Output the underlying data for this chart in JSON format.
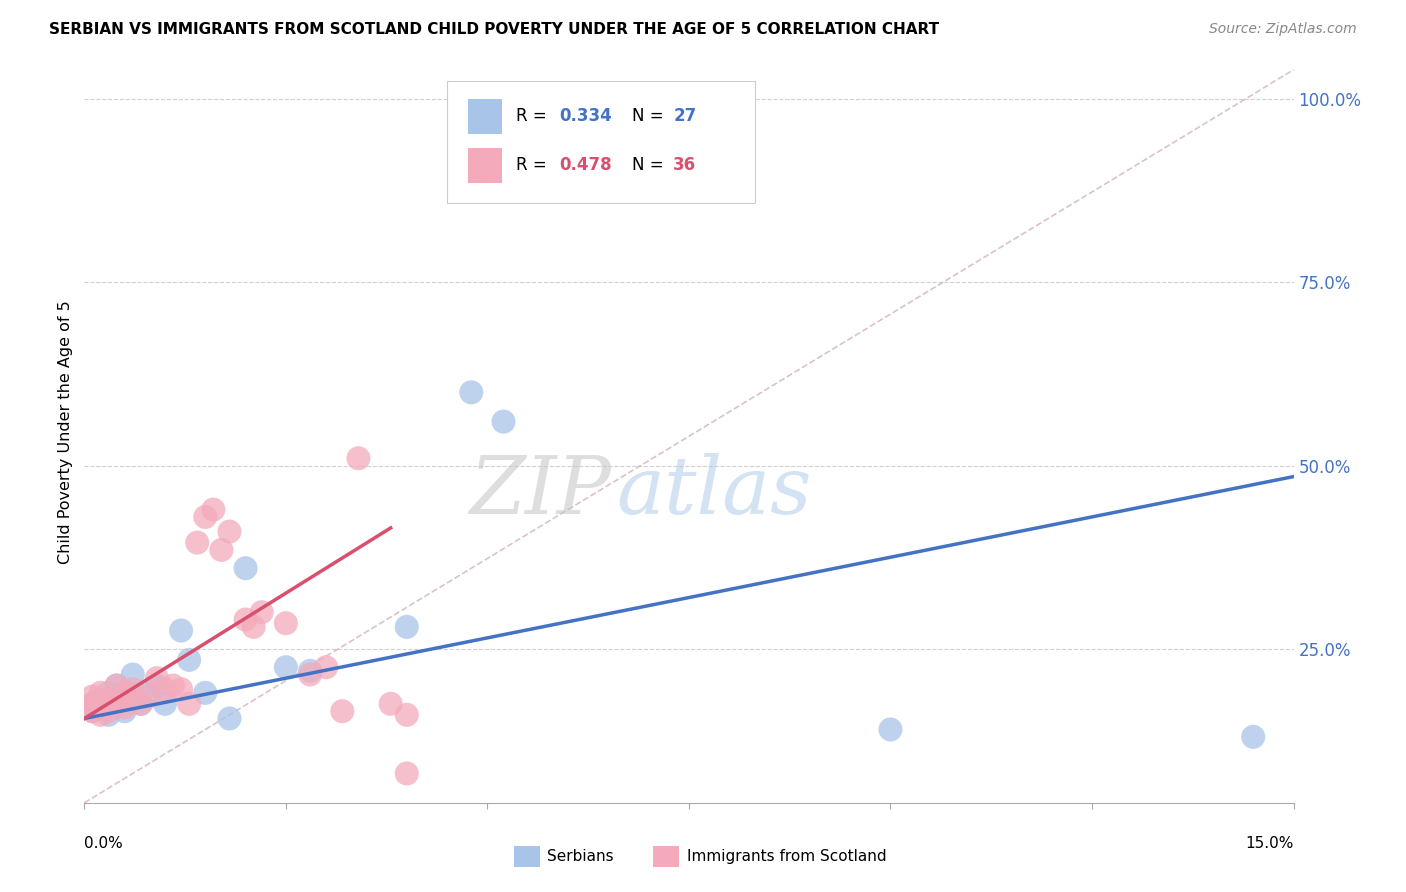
{
  "title": "SERBIAN VS IMMIGRANTS FROM SCOTLAND CHILD POVERTY UNDER THE AGE OF 5 CORRELATION CHART",
  "source": "Source: ZipAtlas.com",
  "ylabel": "Child Poverty Under the Age of 5",
  "x_min": 0.0,
  "x_max": 0.15,
  "y_min": 0.04,
  "y_max": 1.05,
  "ytick_values": [
    0.25,
    0.5,
    0.75,
    1.0
  ],
  "ytick_labels": [
    "25.0%",
    "50.0%",
    "75.0%",
    "100.0%"
  ],
  "color_serbian": "#a8c4e8",
  "color_immigrant": "#f4aabb",
  "color_line_serbian": "#4472c4",
  "color_line_immigrant": "#d94f6e",
  "color_diagonal": "#d0a0b0",
  "color_ytick_labels": "#4472c4",
  "watermark_zip": "ZIP",
  "watermark_atlas": "atlas",
  "serbians_x": [
    0.001,
    0.001,
    0.002,
    0.002,
    0.003,
    0.003,
    0.004,
    0.004,
    0.005,
    0.005,
    0.006,
    0.006,
    0.007,
    0.008,
    0.009,
    0.01,
    0.012,
    0.013,
    0.015,
    0.018,
    0.02,
    0.025,
    0.028,
    0.04,
    0.048,
    0.052,
    0.1,
    0.145
  ],
  "serbians_y": [
    0.165,
    0.175,
    0.17,
    0.18,
    0.16,
    0.19,
    0.175,
    0.2,
    0.165,
    0.19,
    0.215,
    0.185,
    0.175,
    0.19,
    0.2,
    0.175,
    0.275,
    0.235,
    0.19,
    0.155,
    0.36,
    0.225,
    0.22,
    0.28,
    0.6,
    0.56,
    0.14,
    0.13
  ],
  "immigrants_x": [
    0.001,
    0.001,
    0.001,
    0.002,
    0.002,
    0.002,
    0.003,
    0.003,
    0.004,
    0.004,
    0.005,
    0.005,
    0.006,
    0.007,
    0.008,
    0.009,
    0.01,
    0.011,
    0.012,
    0.013,
    0.014,
    0.015,
    0.016,
    0.017,
    0.018,
    0.02,
    0.021,
    0.022,
    0.025,
    0.028,
    0.03,
    0.032,
    0.034,
    0.038,
    0.04,
    0.04
  ],
  "immigrants_y": [
    0.165,
    0.175,
    0.185,
    0.16,
    0.175,
    0.19,
    0.165,
    0.18,
    0.175,
    0.2,
    0.17,
    0.19,
    0.195,
    0.175,
    0.185,
    0.21,
    0.195,
    0.2,
    0.195,
    0.175,
    0.395,
    0.43,
    0.44,
    0.385,
    0.41,
    0.29,
    0.28,
    0.3,
    0.285,
    0.215,
    0.225,
    0.165,
    0.51,
    0.175,
    0.08,
    0.16
  ],
  "serbian_line_x0": 0.0,
  "serbian_line_y0": 0.155,
  "serbian_line_x1": 0.15,
  "serbian_line_y1": 0.485,
  "immigrant_line_x0": 0.0,
  "immigrant_line_y0": 0.155,
  "immigrant_line_x1": 0.038,
  "immigrant_line_y1": 0.415,
  "diag_line_x0": 0.0,
  "diag_line_y0": 0.04,
  "diag_line_x1": 0.15,
  "diag_line_y1": 1.04
}
